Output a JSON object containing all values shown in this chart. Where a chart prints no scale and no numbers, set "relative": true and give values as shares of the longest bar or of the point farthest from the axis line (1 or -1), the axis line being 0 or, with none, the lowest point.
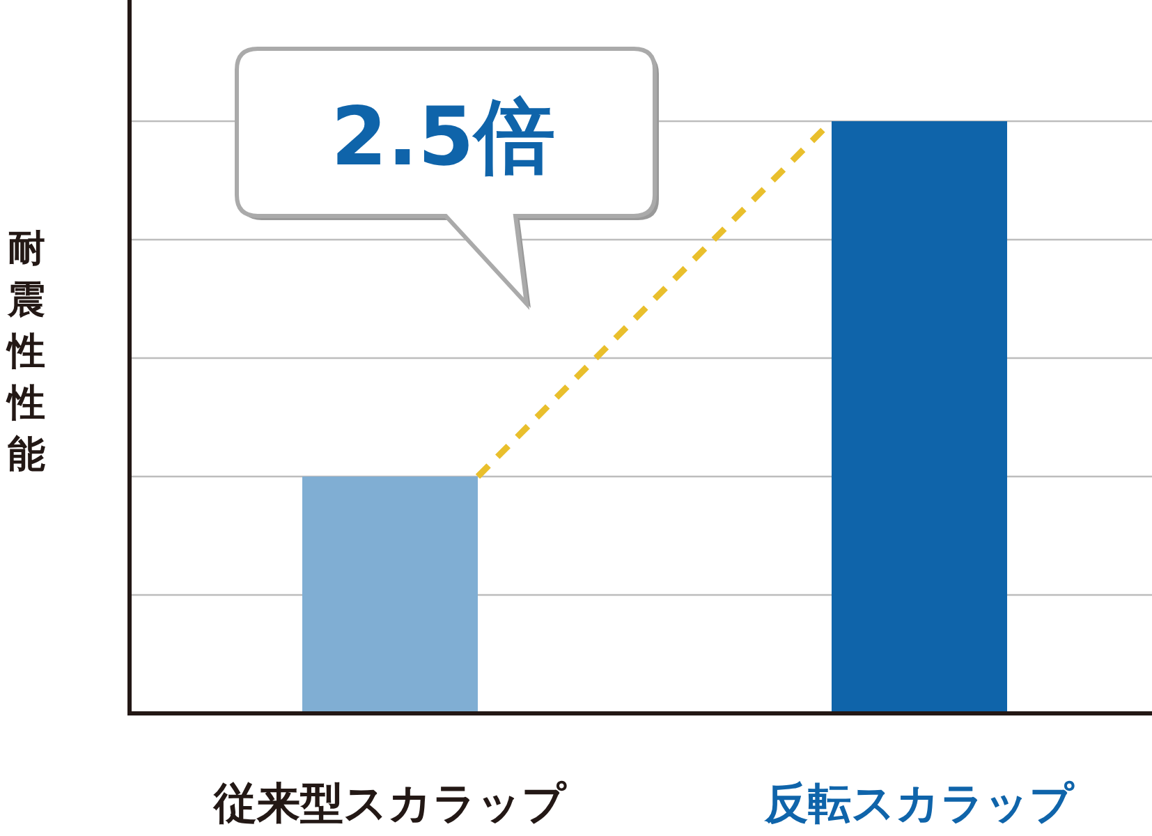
{
  "chart_data": {
    "type": "bar",
    "relative": true,
    "ylabel": "耐震性性能",
    "categories": [
      "従来型スカラップ",
      "反転スカラップ"
    ],
    "values": [
      0.4,
      1
    ],
    "colors": [
      "#80aed3",
      "#0f64aa"
    ],
    "grid": true,
    "annotations": [
      "2.5倍"
    ]
  }
}
